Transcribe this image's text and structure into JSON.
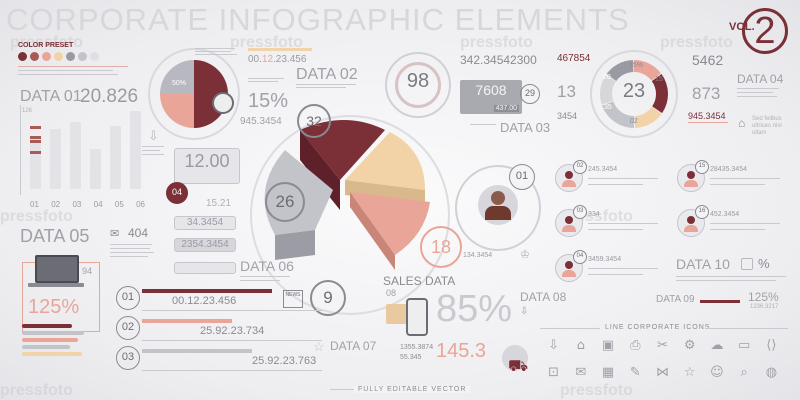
{
  "header": {
    "title": "CORPORATE INFOGRAPHIC ELEMENTS",
    "vol_label": "VOL.",
    "vol_number": "2"
  },
  "color_preset": {
    "label": "COLOR PRESET",
    "swatches": [
      "#7b2f37",
      "#a85a55",
      "#e9a598",
      "#f2d3a8",
      "#9a9aa2",
      "#c3c3ca",
      "#e0e0e4"
    ]
  },
  "data01": {
    "label": "DATA 01",
    "value": "20.826",
    "axis_top": "126",
    "columns": [
      "01",
      "02",
      "03",
      "04",
      "05",
      "06"
    ],
    "bar_values": [
      0.62,
      0.72,
      0.8,
      0.48,
      0.75,
      0.93
    ],
    "marker_values": [
      0.55,
      0.6,
      0.55,
      0.42,
      0.6,
      0.72
    ]
  },
  "small_pie": {
    "slices": [
      {
        "label": "50%",
        "value": 50,
        "color": "#7b2f37"
      },
      {
        "label": "25%",
        "value": 25,
        "color": "#e9a598"
      },
      {
        "label": "",
        "value": 25,
        "color": "#b8b8c0"
      }
    ]
  },
  "percent15": {
    "value": "15%",
    "sub": "945.3454"
  },
  "data02": {
    "label": "DATA 02",
    "timer_prefix": "00.",
    "timer_accent": "12",
    "timer_rest": ".23.456"
  },
  "circle98": {
    "value": "98"
  },
  "data03": {
    "top_value": "342.34542300",
    "box_value": "7608",
    "box_sub": "437.00",
    "badge": "29",
    "label": "DATA 03"
  },
  "center_pie": {
    "labels": [
      "32",
      "26",
      "18",
      "9"
    ],
    "colors": [
      "#7b2f37",
      "#f2d3a8",
      "#e9a598",
      "#b8b8c0"
    ]
  },
  "counter_box": {
    "value": "12.00",
    "sub": "15.21"
  },
  "step04": {
    "label": "04"
  },
  "inputs": [
    "34.3454",
    "2354.3454"
  ],
  "data04": {
    "top_left": "467854",
    "left_13": "13",
    "left_3454": "3454",
    "center": "23",
    "ring_labels": [
      "15%",
      "20",
      "15",
      "02",
      "35"
    ],
    "right_top": "5462",
    "right_mid": "873",
    "right_bottom": "945.3454",
    "label": "DATA 04",
    "note": "Sed fellbus ultrices nisi ullam"
  },
  "data05": {
    "label": "DATA 05",
    "value": "404"
  },
  "laptop": {
    "percent": "125%",
    "badge": "94"
  },
  "data06": {
    "label": "DATA 06"
  },
  "person": {
    "badge": "01",
    "value": "134.3454"
  },
  "people_list": [
    {
      "num": "02",
      "value": "245.3454",
      "side": "left"
    },
    {
      "num": "03",
      "value": "334",
      "side": "left"
    },
    {
      "num": "04",
      "value": "3459.3454",
      "side": "left"
    },
    {
      "num": "15",
      "value": "28435.3454",
      "side": "right"
    },
    {
      "num": "16",
      "value": "452.3454",
      "side": "right"
    }
  ],
  "data10": {
    "label": "DATA 10",
    "percent": "%"
  },
  "data09": {
    "label": "DATA 09",
    "percent": "125%",
    "sub": "1236.3217"
  },
  "steps": [
    {
      "num": "01",
      "value": "00.12.23.456"
    },
    {
      "num": "02",
      "value": "25.92.23.734"
    },
    {
      "num": "03",
      "value": "25.92.23.763"
    }
  ],
  "news": {
    "label": "NEWS"
  },
  "sales": {
    "label": "SALES DATA",
    "percent": "85%",
    "big": "145.3",
    "num1": "1355.3874",
    "num2": "55.345",
    "top_num": "08"
  },
  "data07": {
    "label": "DATA 07"
  },
  "data08": {
    "label": "DATA 08"
  },
  "line_icons": {
    "label": "LINE CORPORATE ICONS",
    "icons": [
      "download-icon",
      "home-icon",
      "briefcase-icon",
      "printer-icon",
      "scissors-icon",
      "gear-icon",
      "cloud-icon",
      "folder-icon",
      "code-icon",
      "lock-icon",
      "mail-icon",
      "calendar-icon",
      "pen-icon",
      "share-icon",
      "star-icon",
      "user-icon",
      "search-icon",
      "globe-icon"
    ]
  },
  "footer": {
    "label": "FULLY EDITABLE VECTOR"
  },
  "watermark": "pressfoto"
}
